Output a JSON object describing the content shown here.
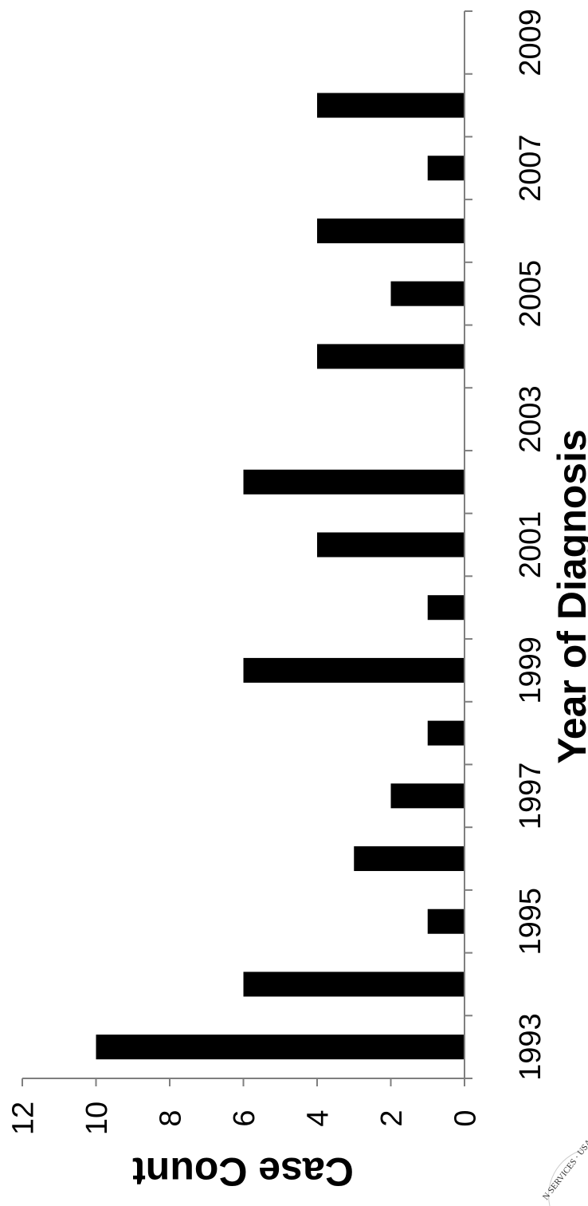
{
  "chart_data": {
    "type": "bar",
    "orientation": "vertical bars, figure rotated 90° clockwise",
    "xlabel": "Year of Diagnosis",
    "ylabel": "Case Count",
    "categories": [
      "1993",
      "1994",
      "1995",
      "1996",
      "1997",
      "1998",
      "1999",
      "2000",
      "2001",
      "2002",
      "2003",
      "2004",
      "2005",
      "2006",
      "2007",
      "2008",
      "2009"
    ],
    "x_tick_labels": [
      "1993",
      "1995",
      "1997",
      "1999",
      "2001",
      "2003",
      "2005",
      "2007",
      "2009"
    ],
    "values": [
      10,
      6,
      1,
      3,
      2,
      1,
      6,
      1,
      4,
      6,
      0,
      4,
      2,
      4,
      1,
      4,
      0
    ],
    "ylim": [
      0,
      12
    ],
    "y_ticks": [
      0,
      2,
      4,
      6,
      8,
      10,
      12
    ],
    "y_tick_labels": [
      "0",
      "2",
      "4",
      "6",
      "8",
      "10",
      "12"
    ],
    "grid": false,
    "bar_color": "#000000",
    "axis_color": "#7f7f7f"
  },
  "seal": {
    "text": "N SERVICES · USA",
    "color": "#333333"
  }
}
